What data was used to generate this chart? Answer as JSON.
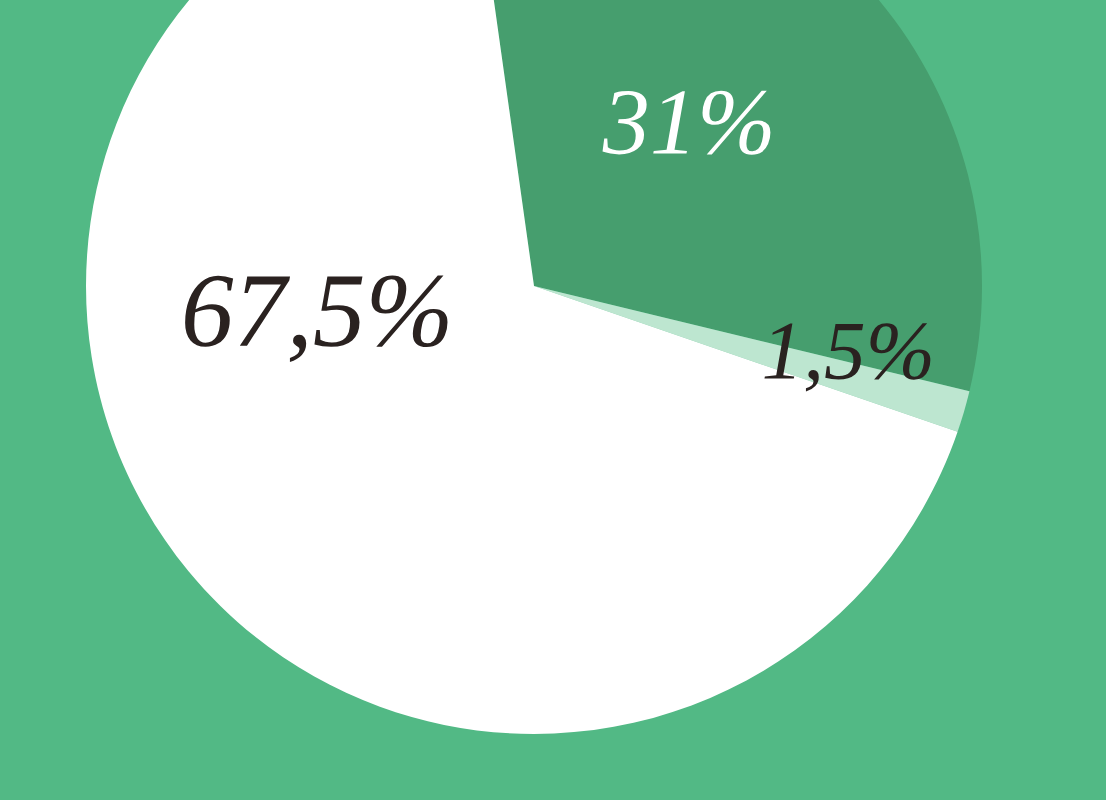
{
  "chart_data": {
    "type": "pie",
    "categories": [
      null,
      null,
      null
    ],
    "values": [
      31,
      1.5,
      67.5
    ],
    "colors": [
      "#469e6e",
      "#bde6d0",
      "#ffffff"
    ],
    "value_labels": [
      "31%",
      "1,5%",
      "67,5%"
    ],
    "legend": false
  }
}
